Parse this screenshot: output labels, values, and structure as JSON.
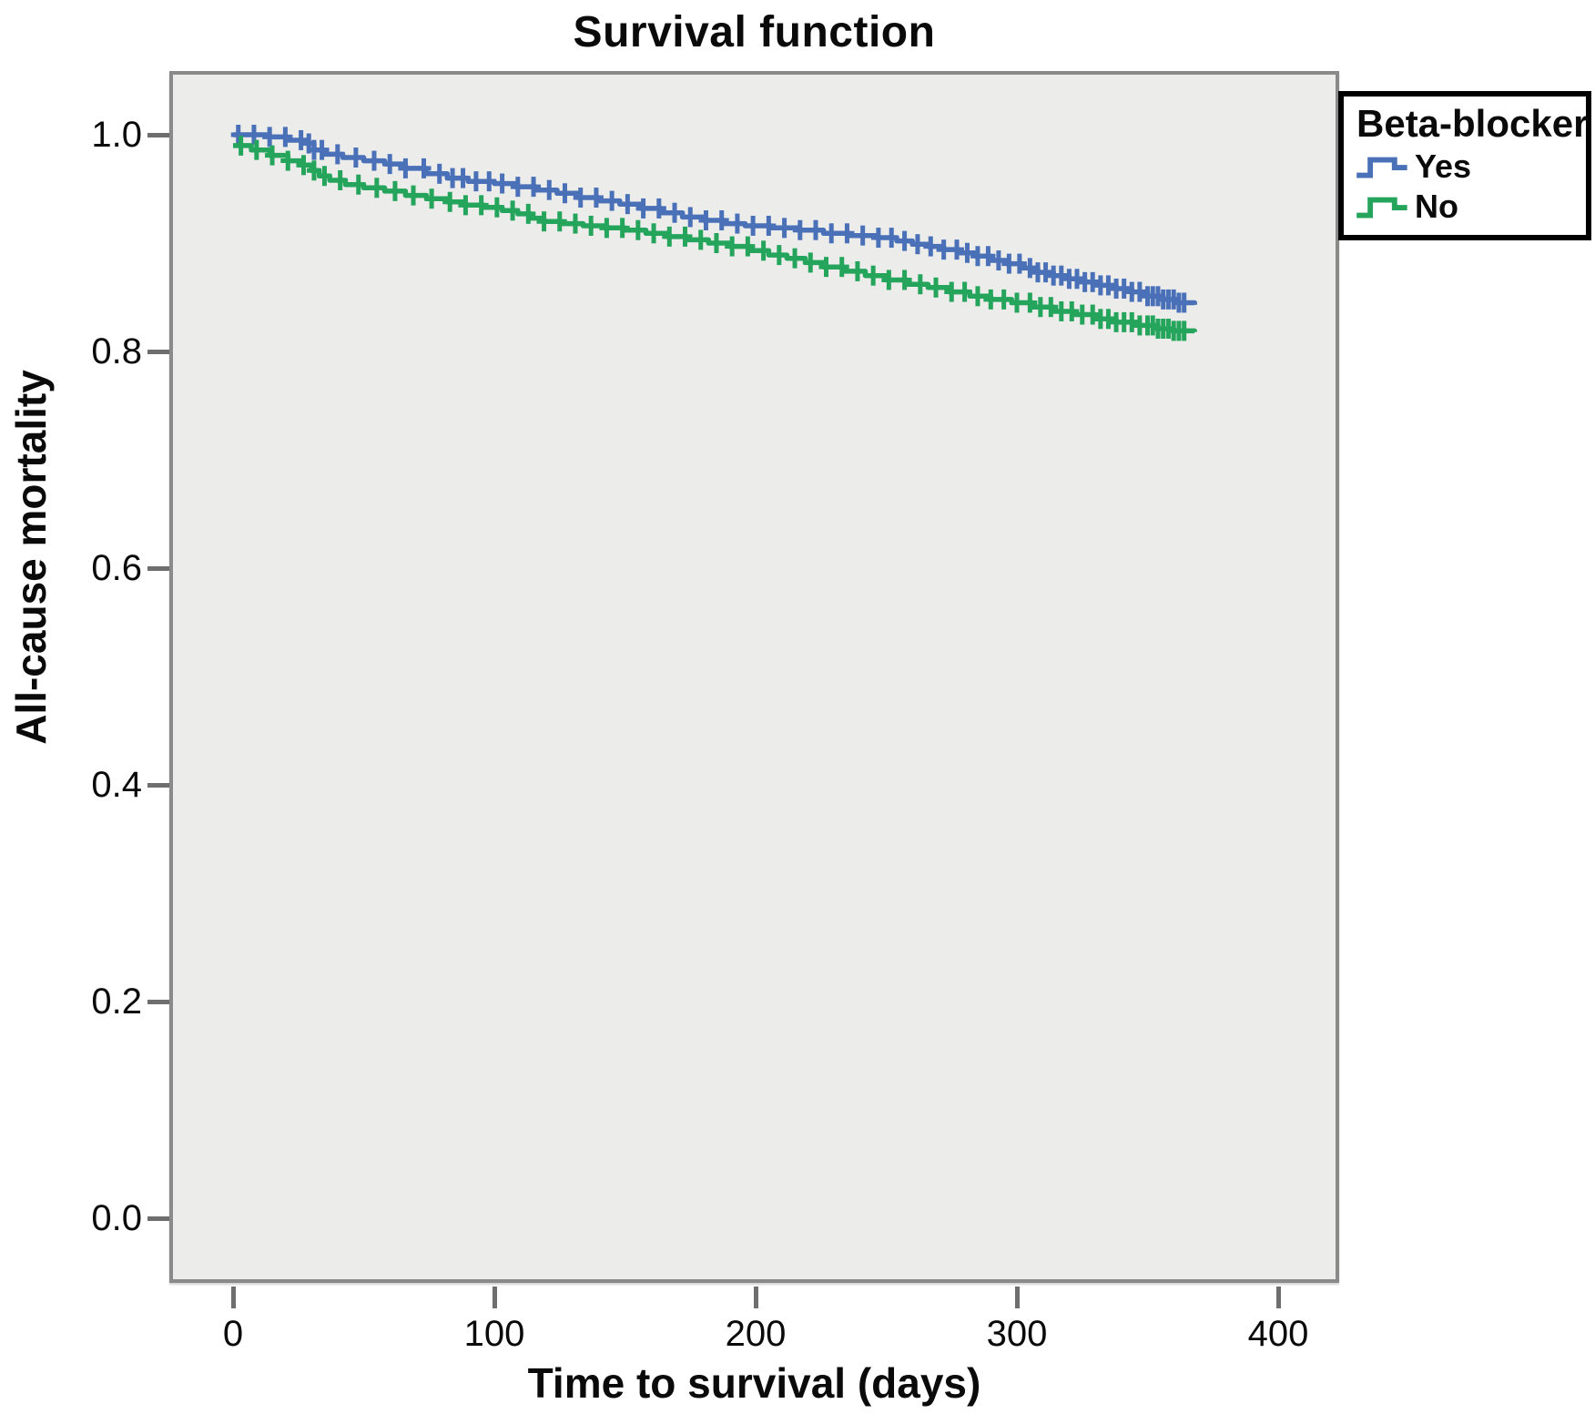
{
  "title": "Survival function",
  "axes": {
    "x": {
      "label": "Time to survival (days)",
      "tick_labels": [
        "0",
        "100",
        "200",
        "300",
        "400"
      ]
    },
    "y": {
      "label": "All-cause mortality",
      "tick_labels": [
        "1.0",
        "0.8",
        "0.6",
        "0.4",
        "0.2",
        "0.0"
      ]
    }
  },
  "legend": {
    "title": "Beta-blocker",
    "items": [
      {
        "label": "Yes",
        "color": "#4a70b8"
      },
      {
        "label": "No",
        "color": "#25a55c"
      }
    ]
  },
  "colors": {
    "plot_background": "#ececeb",
    "plot_border": "#8a8a8a",
    "tick": "#6e6e6e",
    "series_yes": "#4a70b8",
    "series_no": "#25a55c"
  },
  "chart_data": {
    "type": "line",
    "subtype": "kaplan-meier-step",
    "title": "Survival function",
    "xlabel": "Time to survival (days)",
    "ylabel": "All-cause mortality",
    "xlim": [
      -23,
      422
    ],
    "ylim": [
      -0.056,
      1.056
    ],
    "x_ticks": [
      0,
      100,
      200,
      300,
      400
    ],
    "y_ticks": [
      1.0,
      0.8,
      0.6,
      0.4,
      0.2,
      0.0
    ],
    "grid": false,
    "plot_bg": "#ececeb",
    "legend_position": "outside-top-right",
    "series": [
      {
        "name": "Yes",
        "color": "#4a70b8",
        "points": [
          [
            0,
            1.0
          ],
          [
            14,
            0.998
          ],
          [
            21,
            0.995
          ],
          [
            28,
            0.992
          ],
          [
            31,
            0.986
          ],
          [
            35,
            0.982
          ],
          [
            42,
            0.979
          ],
          [
            50,
            0.976
          ],
          [
            58,
            0.973
          ],
          [
            66,
            0.969
          ],
          [
            74,
            0.964
          ],
          [
            82,
            0.96
          ],
          [
            90,
            0.957
          ],
          [
            100,
            0.955
          ],
          [
            108,
            0.952
          ],
          [
            116,
            0.949
          ],
          [
            124,
            0.946
          ],
          [
            132,
            0.942
          ],
          [
            140,
            0.939
          ],
          [
            148,
            0.936
          ],
          [
            156,
            0.932
          ],
          [
            164,
            0.928
          ],
          [
            172,
            0.924
          ],
          [
            180,
            0.921
          ],
          [
            188,
            0.918
          ],
          [
            196,
            0.916
          ],
          [
            206,
            0.914
          ],
          [
            216,
            0.912
          ],
          [
            226,
            0.909
          ],
          [
            236,
            0.907
          ],
          [
            246,
            0.905
          ],
          [
            254,
            0.902
          ],
          [
            260,
            0.899
          ],
          [
            266,
            0.897
          ],
          [
            272,
            0.894
          ],
          [
            278,
            0.891
          ],
          [
            284,
            0.888
          ],
          [
            290,
            0.884
          ],
          [
            296,
            0.881
          ],
          [
            302,
            0.877
          ],
          [
            308,
            0.873
          ],
          [
            314,
            0.87
          ],
          [
            320,
            0.867
          ],
          [
            326,
            0.864
          ],
          [
            332,
            0.861
          ],
          [
            338,
            0.858
          ],
          [
            344,
            0.855
          ],
          [
            350,
            0.851
          ],
          [
            356,
            0.848
          ],
          [
            361,
            0.845
          ],
          [
            368,
            0.843
          ]
        ],
        "censor_days": [
          2,
          8,
          14,
          20,
          26,
          29,
          31,
          34,
          40,
          47,
          54,
          60,
          66,
          73,
          79,
          84,
          88,
          93,
          98,
          103,
          109,
          115,
          121,
          127,
          133,
          139,
          145,
          151,
          157,
          163,
          169,
          175,
          181,
          187,
          193,
          199,
          205,
          211,
          217,
          223,
          229,
          235,
          241,
          247,
          252,
          257,
          262,
          267,
          272,
          277,
          281,
          285,
          289,
          293,
          297,
          301,
          305,
          308,
          311,
          314,
          317,
          320,
          323,
          326,
          329,
          332,
          335,
          338,
          341,
          344,
          347,
          350,
          352,
          354,
          356,
          358,
          360,
          362,
          364
        ]
      },
      {
        "name": "No",
        "color": "#25a55c",
        "points": [
          [
            0,
            0.99
          ],
          [
            7,
            0.986
          ],
          [
            14,
            0.981
          ],
          [
            21,
            0.976
          ],
          [
            26,
            0.972
          ],
          [
            30,
            0.967
          ],
          [
            33,
            0.962
          ],
          [
            37,
            0.958
          ],
          [
            43,
            0.954
          ],
          [
            50,
            0.951
          ],
          [
            58,
            0.948
          ],
          [
            66,
            0.944
          ],
          [
            74,
            0.941
          ],
          [
            82,
            0.938
          ],
          [
            89,
            0.935
          ],
          [
            96,
            0.933
          ],
          [
            103,
            0.93
          ],
          [
            109,
            0.927
          ],
          [
            114,
            0.923
          ],
          [
            119,
            0.92
          ],
          [
            126,
            0.918
          ],
          [
            134,
            0.916
          ],
          [
            142,
            0.914
          ],
          [
            150,
            0.912
          ],
          [
            158,
            0.909
          ],
          [
            166,
            0.906
          ],
          [
            174,
            0.903
          ],
          [
            182,
            0.9
          ],
          [
            190,
            0.897
          ],
          [
            198,
            0.893
          ],
          [
            205,
            0.889
          ],
          [
            212,
            0.886
          ],
          [
            219,
            0.882
          ],
          [
            226,
            0.878
          ],
          [
            234,
            0.874
          ],
          [
            242,
            0.87
          ],
          [
            250,
            0.866
          ],
          [
            258,
            0.862
          ],
          [
            266,
            0.859
          ],
          [
            274,
            0.855
          ],
          [
            282,
            0.851
          ],
          [
            290,
            0.848
          ],
          [
            298,
            0.845
          ],
          [
            306,
            0.841
          ],
          [
            314,
            0.837
          ],
          [
            322,
            0.834
          ],
          [
            330,
            0.83
          ],
          [
            338,
            0.827
          ],
          [
            346,
            0.824
          ],
          [
            354,
            0.821
          ],
          [
            360,
            0.819
          ],
          [
            368,
            0.818
          ]
        ],
        "censor_days": [
          3,
          9,
          15,
          21,
          27,
          31,
          35,
          41,
          48,
          55,
          62,
          69,
          76,
          83,
          89,
          95,
          101,
          107,
          113,
          119,
          125,
          131,
          137,
          143,
          149,
          155,
          161,
          167,
          173,
          179,
          185,
          191,
          197,
          203,
          209,
          215,
          221,
          227,
          233,
          239,
          245,
          251,
          257,
          263,
          269,
          275,
          280,
          285,
          290,
          295,
          300,
          305,
          309,
          313,
          317,
          321,
          325,
          329,
          332,
          335,
          338,
          341,
          344,
          347,
          350,
          352,
          354,
          356,
          358,
          360,
          362,
          364
        ]
      }
    ]
  }
}
